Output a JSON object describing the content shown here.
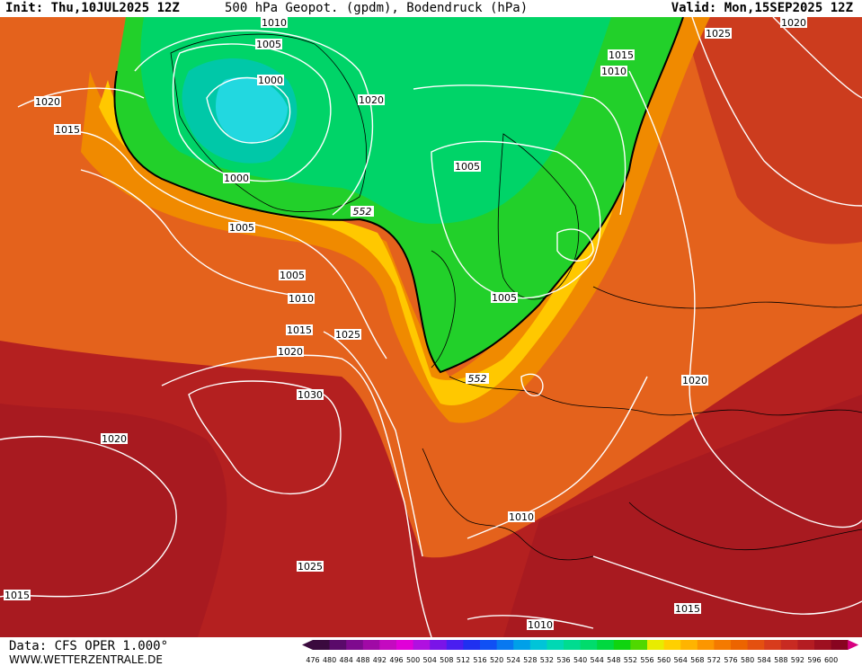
{
  "header": {
    "init": "Init: Thu,10JUL2025 12Z",
    "title": "500 hPa Geopot. (gpdm), Bodendruck (hPa)",
    "valid": "Valid: Mon,15SEP2025 12Z"
  },
  "footer": {
    "data_source": "Data: CFS OPER 1.000°",
    "website": "WWW.WETTERZENTRALE.DE"
  },
  "map": {
    "geopotential_labels": [
      "552",
      "552"
    ],
    "pressure_labels": [
      "1010",
      "1005",
      "1000",
      "1020",
      "1015",
      "1010",
      "1020",
      "1025",
      "1020",
      "1015",
      "1000",
      "1005",
      "1005",
      "1005",
      "1010",
      "1015",
      "1020",
      "1025",
      "1030",
      "1020",
      "1025",
      "1015",
      "1020",
      "1010",
      "1010",
      "1015",
      "1005"
    ]
  },
  "colorbar": {
    "ticks": [
      "476",
      "480",
      "484",
      "488",
      "492",
      "496",
      "500",
      "504",
      "508",
      "512",
      "516",
      "520",
      "524",
      "528",
      "532",
      "536",
      "540",
      "544",
      "548",
      "552",
      "556",
      "560",
      "564",
      "568",
      "572",
      "576",
      "580",
      "584",
      "588",
      "592",
      "596",
      "600"
    ],
    "colors": [
      "#3a0a3e",
      "#5a0a6a",
      "#7e0a8e",
      "#a00aa6",
      "#c40ac0",
      "#e000d8",
      "#b010e0",
      "#7a14e8",
      "#4a1ef0",
      "#2030f0",
      "#1050f4",
      "#0878f0",
      "#00a0e8",
      "#00c4d8",
      "#00d8b4",
      "#00dc90",
      "#00dc6c",
      "#00d840",
      "#10d410",
      "#50d800",
      "#e8ec00",
      "#ffd000",
      "#ffb400",
      "#fc9600",
      "#f47a00",
      "#ec6400",
      "#e45010",
      "#d83c1c",
      "#c82a22",
      "#b41c22",
      "#9e1020",
      "#880420",
      "#d80080"
    ]
  }
}
